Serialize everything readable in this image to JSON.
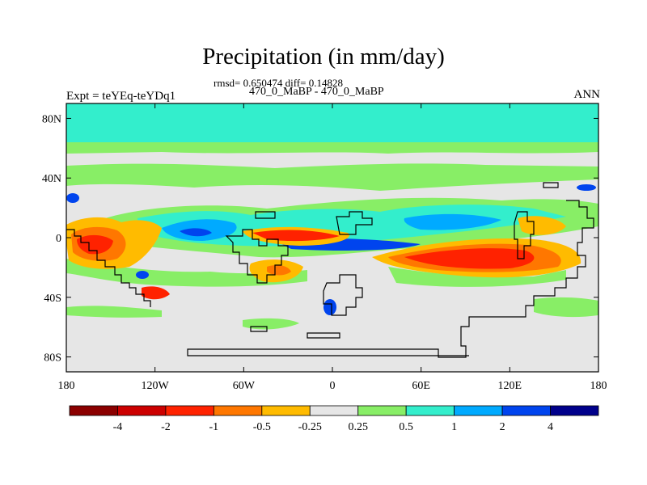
{
  "chart_data": {
    "type": "heatmap",
    "title": "Precipitation (in mm/day)",
    "subtitle": "rmsd= 0.650474 diff= 0.14828",
    "subtitle2": "470_0_MaBP - 470_0_MaBP",
    "left_label": "Expt = teYEq-teYDq1",
    "right_label": "ANN",
    "x_ticks": [
      "180",
      "120W",
      "60W",
      "0",
      "60E",
      "120E",
      "180"
    ],
    "y_ticks": [
      "80N",
      "40N",
      "0",
      "40S",
      "80S"
    ],
    "xlim": [
      -180,
      180
    ],
    "ylim": [
      -90,
      90
    ],
    "colorbar_labels": [
      "-4",
      "-2",
      "-1",
      "-0.5",
      "-0.25",
      "0.25",
      "0.5",
      "1",
      "2",
      "4"
    ],
    "colorbar_colors": [
      "#8b0000",
      "#cc0000",
      "#ff2200",
      "#ff7700",
      "#ffbb00",
      "#e6e6e6",
      "#88ee66",
      "#33eecc",
      "#00aaff",
      "#0044ee",
      "#00008b"
    ]
  }
}
